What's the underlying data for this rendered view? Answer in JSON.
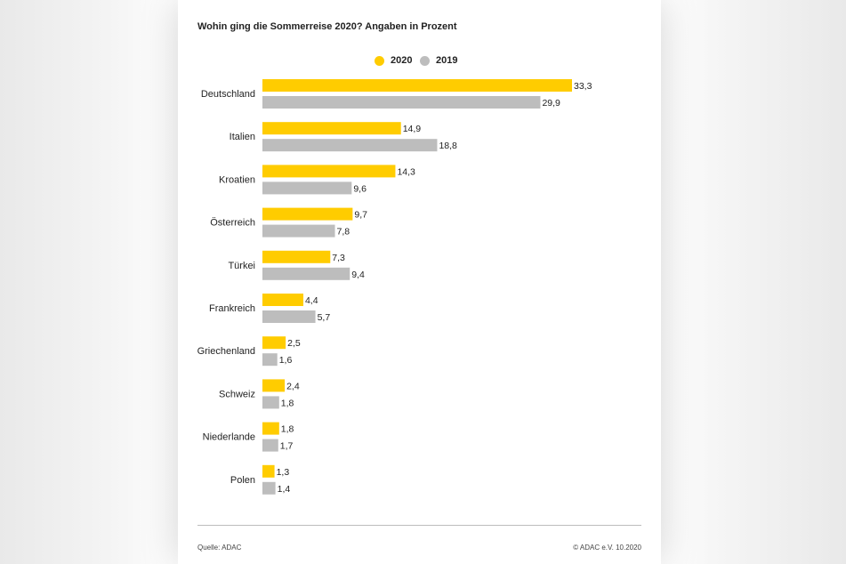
{
  "header": {
    "title": "Wohin ging die Sommerreise 2020? Angaben in Prozent"
  },
  "legend": [
    {
      "label": "2020",
      "color": "#ffcc00"
    },
    {
      "label": "2019",
      "color": "#bdbdbd"
    }
  ],
  "chart_data": {
    "type": "bar",
    "orientation": "horizontal",
    "title": "Wohin ging die Sommerreise 2020? Angaben in Prozent",
    "categories": [
      "Deutschland",
      "Italien",
      "Kroatien",
      "Österreich",
      "Türkei",
      "Frankreich",
      "Griechenland",
      "Schweiz",
      "Niederlande",
      "Polen"
    ],
    "series": [
      {
        "name": "2020",
        "color": "#ffcc00",
        "values": [
          33.3,
          14.9,
          14.3,
          9.7,
          7.3,
          4.4,
          2.5,
          2.4,
          1.8,
          1.3
        ],
        "labels": [
          "33,3",
          "14,9",
          "14,3",
          "9,7",
          "7,3",
          "4,4",
          "2,5",
          "2,4",
          "1,8",
          "1,3"
        ]
      },
      {
        "name": "2019",
        "color": "#bdbdbd",
        "values": [
          29.9,
          18.8,
          9.6,
          7.8,
          9.4,
          5.7,
          1.6,
          1.8,
          1.7,
          1.4
        ],
        "labels": [
          "29,9",
          "18,8",
          "9,6",
          "7,8",
          "9,4",
          "5,7",
          "1,6",
          "1,8",
          "1,7",
          "1,4"
        ]
      }
    ],
    "xlim": [
      0,
      33.3
    ],
    "grid": false,
    "legend_position": "top-center"
  },
  "footer": {
    "source": "Quelle: ADAC",
    "copyright": "© ADAC e.V. 10.2020"
  }
}
